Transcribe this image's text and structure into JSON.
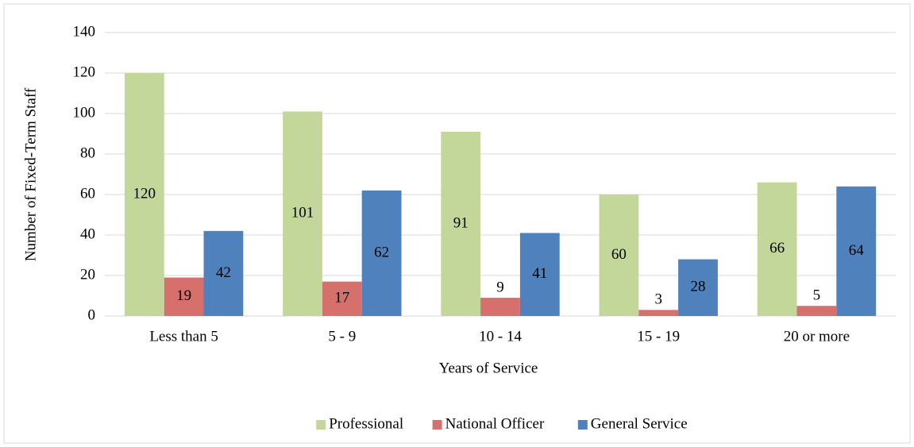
{
  "chart_data": {
    "type": "bar",
    "x_label": "Years of Service",
    "y_label": "Number of Fixed-Term Staff",
    "categories": [
      "Less than 5",
      "5 - 9",
      "10 - 14",
      "15 - 19",
      "20 or more"
    ],
    "series": [
      {
        "name": "Professional",
        "color": "#c4d79b",
        "values": [
          120,
          101,
          91,
          60,
          66
        ]
      },
      {
        "name": "National Officer",
        "color": "#d6706d",
        "values": [
          19,
          17,
          9,
          3,
          5
        ]
      },
      {
        "name": "General Service",
        "color": "#4f81bd",
        "values": [
          42,
          62,
          41,
          28,
          64
        ]
      }
    ],
    "ylim": [
      0,
      140
    ],
    "yticks": [
      0,
      20,
      40,
      60,
      80,
      100,
      120,
      140
    ],
    "grid": true,
    "legend": "bottom",
    "data_labels": true
  }
}
